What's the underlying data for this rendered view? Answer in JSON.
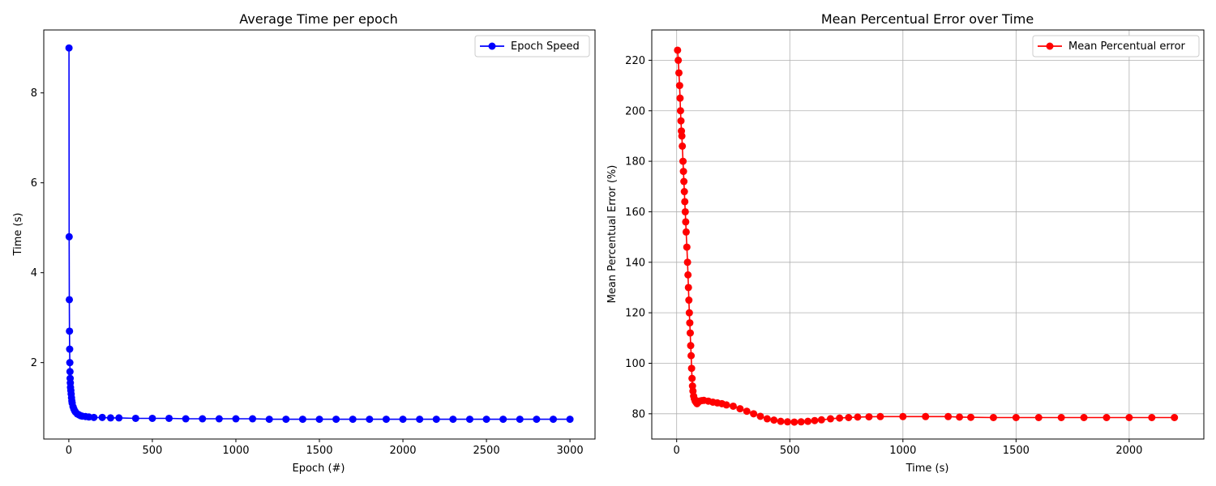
{
  "chart_data": [
    {
      "type": "line",
      "title": "Average Time per epoch",
      "xlabel": "Epoch (#)",
      "ylabel": "Time (s)",
      "xlim": [
        -150,
        3150
      ],
      "ylim": [
        0.3,
        9.4
      ],
      "xticks": [
        0,
        500,
        1000,
        1500,
        2000,
        2500,
        3000
      ],
      "yticks": [
        2,
        4,
        6,
        8
      ],
      "grid": false,
      "legend_position": "top-right",
      "color": "#0000ff",
      "series": [
        {
          "name": "Epoch Speed",
          "x": [
            1,
            2,
            3,
            4,
            5,
            6,
            7,
            8,
            9,
            10,
            12,
            14,
            16,
            18,
            20,
            25,
            30,
            35,
            40,
            50,
            60,
            70,
            80,
            100,
            120,
            150,
            200,
            250,
            300,
            400,
            500,
            600,
            700,
            800,
            900,
            1000,
            1100,
            1200,
            1300,
            1400,
            1500,
            1600,
            1700,
            1800,
            1900,
            2000,
            2100,
            2200,
            2300,
            2400,
            2500,
            2600,
            2700,
            2800,
            2900,
            3000
          ],
          "y": [
            9.0,
            4.8,
            3.4,
            2.7,
            2.3,
            2.0,
            1.8,
            1.65,
            1.55,
            1.45,
            1.38,
            1.3,
            1.22,
            1.15,
            1.1,
            1.02,
            0.97,
            0.93,
            0.9,
            0.86,
            0.84,
            0.82,
            0.81,
            0.8,
            0.79,
            0.78,
            0.78,
            0.77,
            0.77,
            0.76,
            0.76,
            0.76,
            0.75,
            0.75,
            0.75,
            0.75,
            0.75,
            0.74,
            0.74,
            0.74,
            0.74,
            0.74,
            0.74,
            0.74,
            0.74,
            0.74,
            0.74,
            0.74,
            0.74,
            0.74,
            0.74,
            0.74,
            0.74,
            0.74,
            0.74,
            0.74
          ]
        }
      ]
    },
    {
      "type": "line",
      "title": "Mean Percentual Error over Time",
      "xlabel": "Time (s)",
      "ylabel": "Mean Percentual Error (%)",
      "xlim": [
        -110,
        2330
      ],
      "ylim": [
        70,
        232
      ],
      "xticks": [
        0,
        500,
        1000,
        1500,
        2000
      ],
      "yticks": [
        80,
        100,
        120,
        140,
        160,
        180,
        200,
        220
      ],
      "grid": true,
      "legend_position": "top-right",
      "color": "#ff0000",
      "series": [
        {
          "name": "Mean Percentual error",
          "x": [
            4,
            7,
            10,
            13,
            15,
            17,
            19,
            21,
            23,
            25,
            28,
            30,
            32,
            34,
            36,
            38,
            40,
            42,
            45,
            48,
            50,
            52,
            54,
            56,
            58,
            60,
            62,
            64,
            66,
            68,
            70,
            72,
            75,
            78,
            82,
            86,
            90,
            95,
            100,
            110,
            120,
            140,
            160,
            180,
            200,
            220,
            250,
            280,
            310,
            340,
            370,
            400,
            430,
            460,
            490,
            520,
            550,
            580,
            610,
            640,
            680,
            720,
            760,
            800,
            850,
            900,
            1000,
            1100,
            1200,
            1250,
            1300,
            1400,
            1500,
            1600,
            1700,
            1800,
            1900,
            2000,
            2100,
            2200
          ],
          "y": [
            224,
            220,
            215,
            210,
            205,
            200,
            196,
            192,
            190,
            186,
            180,
            176,
            172,
            168,
            164,
            160,
            156,
            152,
            146,
            140,
            135,
            130,
            125,
            120,
            116,
            112,
            107,
            103,
            98,
            94,
            91,
            89,
            87,
            86,
            85,
            84.5,
            84,
            84.5,
            85,
            85.2,
            85.3,
            85,
            84.6,
            84.3,
            84,
            83.5,
            83,
            82,
            81,
            80,
            79,
            78,
            77.5,
            77,
            76.8,
            76.7,
            76.8,
            77,
            77.3,
            77.6,
            78,
            78.3,
            78.5,
            78.7,
            78.8,
            78.9,
            78.9,
            78.9,
            78.9,
            78.7,
            78.6,
            78.5,
            78.5,
            78.5,
            78.5,
            78.5,
            78.5,
            78.5,
            78.5,
            78.5
          ]
        }
      ]
    }
  ]
}
